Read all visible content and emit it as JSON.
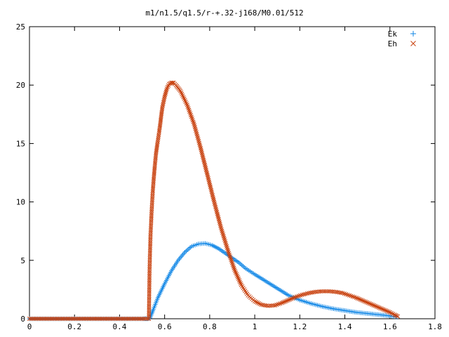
{
  "chart_data": {
    "type": "scatter",
    "title": "m1/n1.5/q1.5/r-+.32-j168/M0.01/512",
    "xlabel": "",
    "ylabel": "",
    "xlim": [
      0,
      1.8
    ],
    "ylim": [
      0,
      25
    ],
    "x_ticks": [
      "0",
      "0.2",
      "0.4",
      "0.6",
      "0.8",
      "1",
      "1.2",
      "1.4",
      "1.6",
      "1.8"
    ],
    "y_ticks": [
      "0",
      "5",
      "10",
      "15",
      "20",
      "25"
    ],
    "grid": false,
    "legend_position": "top-right",
    "series": [
      {
        "name": "Ek",
        "marker": "+",
        "color": "#0f86e6",
        "points": [
          [
            0.0,
            0.0
          ],
          [
            0.05,
            0.0
          ],
          [
            0.1,
            0.0
          ],
          [
            0.15,
            0.0
          ],
          [
            0.2,
            0.0
          ],
          [
            0.25,
            0.0
          ],
          [
            0.3,
            0.0
          ],
          [
            0.35,
            0.0
          ],
          [
            0.4,
            0.0
          ],
          [
            0.45,
            0.0
          ],
          [
            0.5,
            0.0
          ],
          [
            0.525,
            0.0
          ],
          [
            0.535,
            0.05
          ],
          [
            0.55,
            0.8
          ],
          [
            0.57,
            1.8
          ],
          [
            0.6,
            3.0
          ],
          [
            0.63,
            4.1
          ],
          [
            0.66,
            5.0
          ],
          [
            0.69,
            5.7
          ],
          [
            0.72,
            6.2
          ],
          [
            0.75,
            6.4
          ],
          [
            0.78,
            6.45
          ],
          [
            0.81,
            6.3
          ],
          [
            0.84,
            6.0
          ],
          [
            0.87,
            5.6
          ],
          [
            0.9,
            5.2
          ],
          [
            0.93,
            4.8
          ],
          [
            0.96,
            4.3
          ],
          [
            1.0,
            3.8
          ],
          [
            1.05,
            3.2
          ],
          [
            1.1,
            2.6
          ],
          [
            1.15,
            2.0
          ],
          [
            1.2,
            1.6
          ],
          [
            1.25,
            1.3
          ],
          [
            1.3,
            1.05
          ],
          [
            1.35,
            0.85
          ],
          [
            1.4,
            0.7
          ],
          [
            1.45,
            0.55
          ],
          [
            1.5,
            0.45
          ],
          [
            1.55,
            0.35
          ],
          [
            1.6,
            0.25
          ],
          [
            1.63,
            0.15
          ]
        ]
      },
      {
        "name": "Eh",
        "marker": "x",
        "color": "#c8410e",
        "points": [
          [
            0.0,
            0.0
          ],
          [
            0.05,
            0.0
          ],
          [
            0.1,
            0.0
          ],
          [
            0.15,
            0.0
          ],
          [
            0.2,
            0.0
          ],
          [
            0.25,
            0.0
          ],
          [
            0.3,
            0.0
          ],
          [
            0.35,
            0.0
          ],
          [
            0.4,
            0.0
          ],
          [
            0.45,
            0.0
          ],
          [
            0.5,
            0.0
          ],
          [
            0.53,
            0.0
          ],
          [
            0.533,
            4.1
          ],
          [
            0.537,
            7.0
          ],
          [
            0.542,
            9.1
          ],
          [
            0.547,
            10.8
          ],
          [
            0.552,
            12.1
          ],
          [
            0.557,
            13.2
          ],
          [
            0.562,
            14.2
          ],
          [
            0.568,
            15.0
          ],
          [
            0.575,
            15.9
          ],
          [
            0.58,
            16.6
          ],
          [
            0.585,
            17.4
          ],
          [
            0.59,
            18.1
          ],
          [
            0.6,
            19.0
          ],
          [
            0.61,
            19.7
          ],
          [
            0.62,
            20.1
          ],
          [
            0.63,
            20.2
          ],
          [
            0.64,
            20.2
          ],
          [
            0.65,
            20.0
          ],
          [
            0.67,
            19.5
          ],
          [
            0.7,
            18.3
          ],
          [
            0.73,
            16.7
          ],
          [
            0.76,
            14.6
          ],
          [
            0.79,
            12.3
          ],
          [
            0.82,
            10.0
          ],
          [
            0.85,
            7.8
          ],
          [
            0.88,
            5.9
          ],
          [
            0.91,
            4.2
          ],
          [
            0.94,
            2.9
          ],
          [
            0.97,
            2.0
          ],
          [
            1.0,
            1.5
          ],
          [
            1.03,
            1.2
          ],
          [
            1.06,
            1.1
          ],
          [
            1.09,
            1.15
          ],
          [
            1.12,
            1.35
          ],
          [
            1.15,
            1.6
          ],
          [
            1.18,
            1.85
          ],
          [
            1.21,
            2.05
          ],
          [
            1.24,
            2.2
          ],
          [
            1.27,
            2.3
          ],
          [
            1.3,
            2.35
          ],
          [
            1.33,
            2.35
          ],
          [
            1.36,
            2.3
          ],
          [
            1.39,
            2.2
          ],
          [
            1.42,
            2.0
          ],
          [
            1.45,
            1.8
          ],
          [
            1.48,
            1.55
          ],
          [
            1.51,
            1.3
          ],
          [
            1.54,
            1.05
          ],
          [
            1.57,
            0.8
          ],
          [
            1.6,
            0.55
          ],
          [
            1.62,
            0.35
          ],
          [
            1.635,
            0.2
          ]
        ]
      }
    ]
  }
}
